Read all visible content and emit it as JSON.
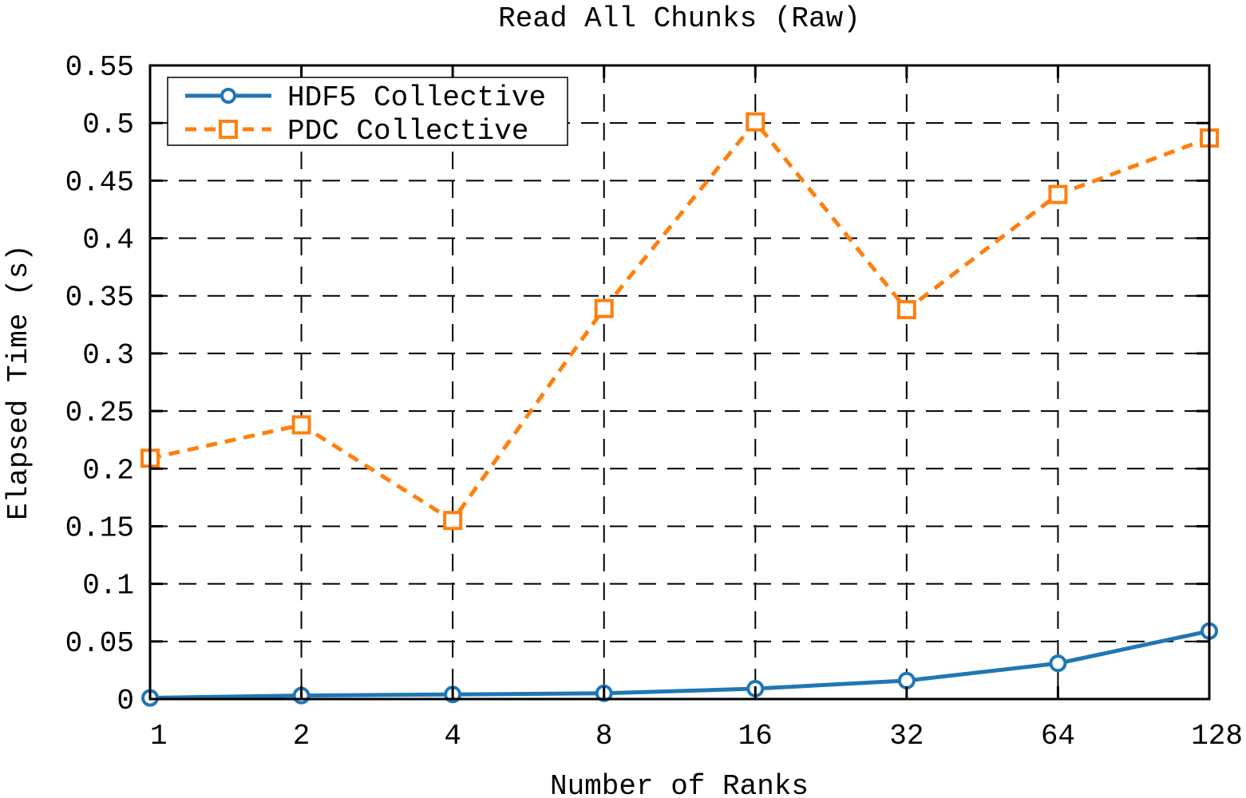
{
  "chart_data": {
    "type": "line",
    "title": "Read All Chunks (Raw)",
    "xlabel": "Number of Ranks",
    "ylabel": "Elapsed Time (s)",
    "x": [
      "1",
      "2",
      "4",
      "8",
      "16",
      "32",
      "64",
      "128"
    ],
    "x_scale": "log2",
    "ylim": [
      0,
      0.55
    ],
    "y_ticks": [
      "0",
      "0.05",
      "0.1",
      "0.15",
      "0.2",
      "0.25",
      "0.3",
      "0.35",
      "0.4",
      "0.45",
      "0.5",
      "0.55"
    ],
    "grid": true,
    "legend_position": "top-left",
    "series": [
      {
        "name": "HDF5 Collective",
        "color": "#1f77b4",
        "line_style": "solid",
        "marker": "circle",
        "values": [
          0.001,
          0.003,
          0.004,
          0.005,
          0.009,
          0.016,
          0.031,
          0.059
        ]
      },
      {
        "name": "PDC Collective",
        "color": "#ff7f0e",
        "line_style": "dashed",
        "marker": "square",
        "values": [
          0.209,
          0.238,
          0.155,
          0.339,
          0.501,
          0.338,
          0.438,
          0.487
        ]
      }
    ]
  }
}
